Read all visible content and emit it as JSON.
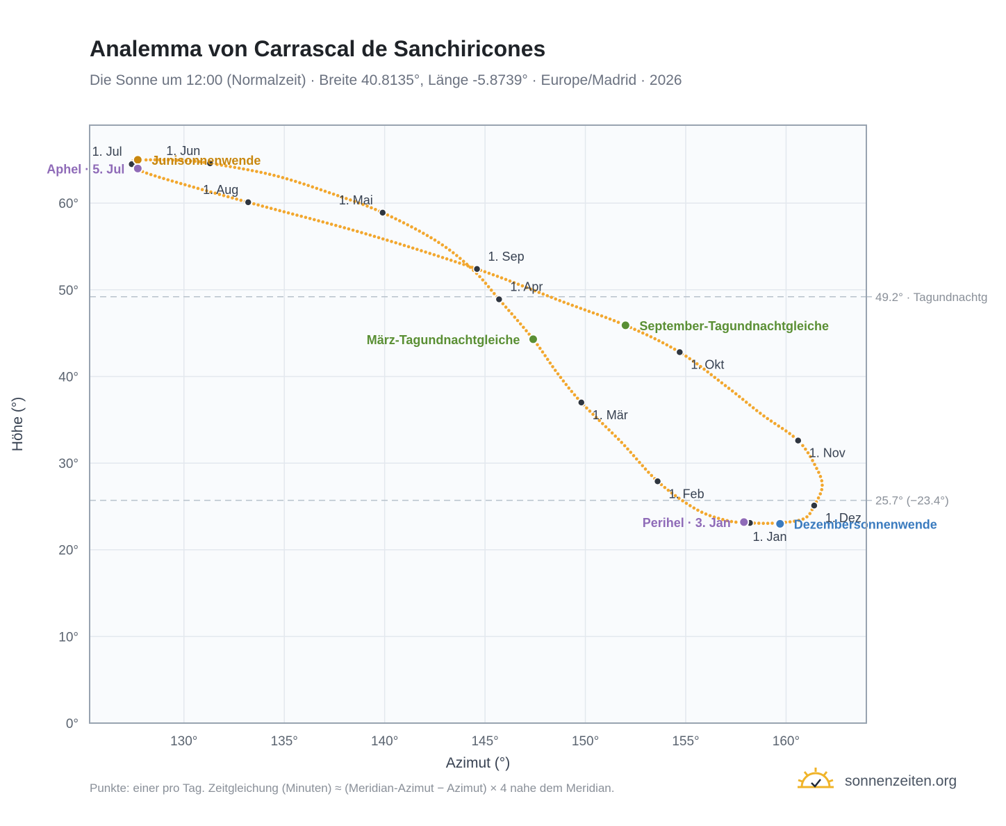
{
  "header": {
    "title": "Analemma von Carrascal de Sanchiricones",
    "subtitle": "Die Sonne um 12:00 (Normalzeit) · Breite 40.8135°, Länge -5.8739° · Europe/Madrid · 2026"
  },
  "footer": {
    "note": "Punkte: einer pro Tag. Zeitgleichung (Minuten) ≈ (Meridian-Azimut − Azimut) × 4 nahe dem Meridian.",
    "brand": "sonnenzeiten.org"
  },
  "colors": {
    "curve": "#f2a72e",
    "month_marker": "#2f3640",
    "equinox": "#5a8f34",
    "june_solstice": "#c8870f",
    "december_solstice": "#3a7bbf",
    "apsis": "#8f6bb8",
    "reference_line": "#b8c2cc",
    "plot_background": "#f9fbfd",
    "grid": "#e3e8ee",
    "frame": "#98a3b0"
  },
  "chart_data": {
    "type": "scatter",
    "xlabel": "Azimut (°)",
    "ylabel": "Höhe (°)",
    "xlim": [
      125.3,
      164
    ],
    "ylim": [
      0,
      69
    ],
    "x_ticks": [
      {
        "value": 130,
        "label": "130°"
      },
      {
        "value": 135,
        "label": "135°"
      },
      {
        "value": 140,
        "label": "140°"
      },
      {
        "value": 145,
        "label": "145°"
      },
      {
        "value": 150,
        "label": "150°"
      },
      {
        "value": 155,
        "label": "155°"
      },
      {
        "value": 160,
        "label": "160°"
      }
    ],
    "y_ticks": [
      {
        "value": 0,
        "label": "0°"
      },
      {
        "value": 10,
        "label": "10°"
      },
      {
        "value": 20,
        "label": "20°"
      },
      {
        "value": 30,
        "label": "30°"
      },
      {
        "value": 40,
        "label": "40°"
      },
      {
        "value": 50,
        "label": "50°"
      },
      {
        "value": 60,
        "label": "60°"
      }
    ],
    "grid": true,
    "reference_lines": [
      {
        "y": 49.2,
        "label": "49.2° · Tagundnachtg"
      },
      {
        "y": 25.7,
        "label": "25.7° (−23.4°)"
      }
    ],
    "path_points": [
      [
        158.2,
        23.1
      ],
      [
        159.6,
        23.1
      ],
      [
        160.9,
        23.6
      ],
      [
        161.4,
        25.1
      ],
      [
        161.8,
        27.3
      ],
      [
        161.5,
        29.5
      ],
      [
        160.6,
        32.6
      ],
      [
        158.8,
        35.6
      ],
      [
        157.0,
        38.9
      ],
      [
        154.7,
        42.8
      ],
      [
        152.0,
        45.9
      ],
      [
        148.9,
        48.6
      ],
      [
        144.6,
        52.4
      ],
      [
        139.0,
        56.5
      ],
      [
        133.2,
        60.1
      ],
      [
        128.9,
        62.9
      ],
      [
        127.6,
        64.0
      ],
      [
        127.4,
        64.5
      ],
      [
        127.5,
        64.9
      ],
      [
        128.5,
        65.0
      ],
      [
        130.0,
        64.9
      ],
      [
        131.3,
        64.6
      ],
      [
        134.5,
        63.2
      ],
      [
        137.5,
        61.0
      ],
      [
        139.9,
        58.9
      ],
      [
        142.6,
        55.6
      ],
      [
        144.4,
        52.3
      ],
      [
        145.7,
        48.9
      ],
      [
        147.4,
        44.3
      ],
      [
        148.6,
        40.4
      ],
      [
        149.8,
        37.0
      ],
      [
        151.8,
        32.4
      ],
      [
        153.6,
        27.9
      ],
      [
        155.5,
        24.7
      ],
      [
        157.0,
        23.4
      ],
      [
        158.2,
        23.1
      ]
    ],
    "month_markers": [
      {
        "label": "1. Jan",
        "x": 158.2,
        "y": 23.1,
        "anchor": "below"
      },
      {
        "label": "1. Feb",
        "x": 153.6,
        "y": 27.9,
        "anchor": "below-right"
      },
      {
        "label": "1. Mär",
        "x": 149.8,
        "y": 37.0,
        "anchor": "below-right"
      },
      {
        "label": "1. Apr",
        "x": 145.7,
        "y": 48.9,
        "anchor": "above-right"
      },
      {
        "label": "1. Mai",
        "x": 139.9,
        "y": 58.9,
        "anchor": "above-left"
      },
      {
        "label": "1. Jun",
        "x": 131.3,
        "y": 64.6,
        "anchor": "above-left"
      },
      {
        "label": "1. Jul",
        "x": 127.4,
        "y": 64.5,
        "anchor": "above-left"
      },
      {
        "label": "1. Aug",
        "x": 133.2,
        "y": 60.1,
        "anchor": "above-left"
      },
      {
        "label": "1. Sep",
        "x": 144.6,
        "y": 52.4,
        "anchor": "above-right"
      },
      {
        "label": "1. Okt",
        "x": 154.7,
        "y": 42.8,
        "anchor": "below-right"
      },
      {
        "label": "1. Nov",
        "x": 160.6,
        "y": 32.6,
        "anchor": "below-right"
      },
      {
        "label": "1. Dez",
        "x": 161.4,
        "y": 25.1,
        "anchor": "below-right"
      }
    ],
    "events": [
      {
        "label": "Junisonnenwende",
        "x": 127.7,
        "y": 65.0,
        "color": "#c8870f",
        "side": "right"
      },
      {
        "label": "Aphel · 5. Jul",
        "x": 127.7,
        "y": 64.0,
        "color": "#8f6bb8",
        "side": "left"
      },
      {
        "label": "März-Tagundnachtgleiche",
        "x": 147.4,
        "y": 44.3,
        "color": "#5a8f34",
        "side": "left"
      },
      {
        "label": "September-Tagundnachtgleiche",
        "x": 152.0,
        "y": 45.9,
        "color": "#5a8f34",
        "side": "right"
      },
      {
        "label": "Perihel · 3. Jan",
        "x": 157.9,
        "y": 23.2,
        "color": "#8f6bb8",
        "side": "left"
      },
      {
        "label": "Dezembersonnenwende",
        "x": 159.7,
        "y": 23.0,
        "color": "#3a7bbf",
        "side": "right"
      }
    ]
  }
}
